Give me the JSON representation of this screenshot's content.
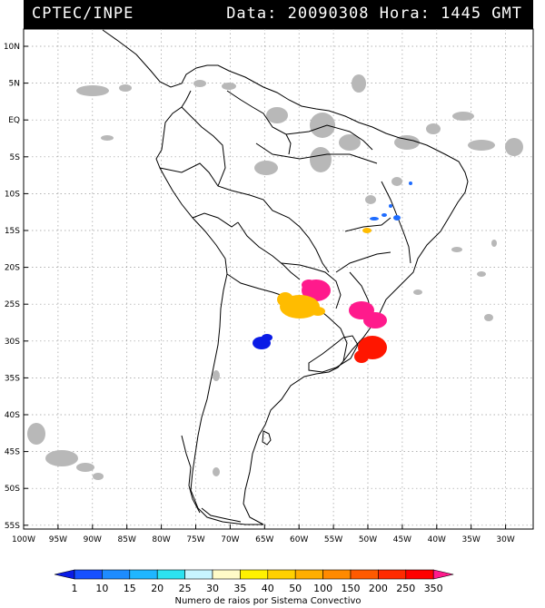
{
  "header": {
    "source": "CPTEC/INPE",
    "info": "Data: 20090308 Hora: 1445 GMT"
  },
  "lat_labels": [
    "10N",
    "5N",
    "EQ",
    "5S",
    "10S",
    "15S",
    "20S",
    "25S",
    "30S",
    "35S",
    "40S",
    "45S",
    "50S",
    "55S"
  ],
  "lon_labels": [
    "100W",
    "95W",
    "90W",
    "85W",
    "80W",
    "75W",
    "70W",
    "65W",
    "60W",
    "55W",
    "50W",
    "45W",
    "40W",
    "35W",
    "30W"
  ],
  "colorbar": {
    "title": "Numero de raios por Sistema Convectivo",
    "ticks": [
      "1",
      "10",
      "15",
      "20",
      "25",
      "30",
      "35",
      "40",
      "50",
      "100",
      "150",
      "200",
      "250",
      "350"
    ],
    "colors": [
      "#0a1be6",
      "#1650ff",
      "#1e8cff",
      "#1fb6ff",
      "#2de2f0",
      "#c8f5ff",
      "#fffbc8",
      "#fff200",
      "#ffd000",
      "#ffae00",
      "#ff8a00",
      "#ff5a00",
      "#ff2a00",
      "#ff0000",
      "#ff1a8c"
    ]
  }
}
